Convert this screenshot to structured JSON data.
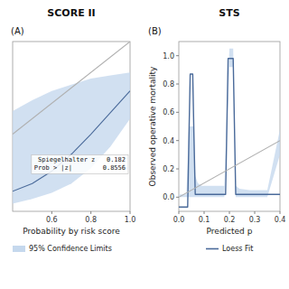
{
  "chart_data": [
    {
      "type": "line",
      "title": "SCORE II",
      "subtitle": "(A)",
      "xlabel": "Probability by risk score",
      "xlim": [
        0.4,
        1.0
      ],
      "ylim": [
        -0.1,
        1.0
      ],
      "xticks": [
        0.6,
        0.8,
        {
          "value": 1.0,
          "label": "1.0"
        }
      ],
      "tick_labels": "x",
      "legend": "bottom",
      "annotation": "Spiegelhalter z   0.182\nProb > |z|        0.8556",
      "series": [
        {
          "type": "area",
          "name": "95% Confidence Limits",
          "color": "#c5d8ed",
          "x": [
            0.4,
            0.5,
            0.6,
            0.7,
            0.8,
            0.9,
            1.0
          ],
          "lower": [
            -0.05,
            -0.02,
            0.02,
            0.08,
            0.18,
            0.32,
            0.5
          ],
          "upper": [
            0.55,
            0.62,
            0.68,
            0.72,
            0.76,
            0.78,
            0.8
          ]
        },
        {
          "type": "line",
          "color": "#4a6a9a",
          "x": [
            0.4,
            0.5,
            0.6,
            0.7,
            0.8,
            0.9,
            1.0
          ],
          "values": [
            0.03,
            0.08,
            0.16,
            0.27,
            0.4,
            0.54,
            0.68
          ]
        },
        {
          "type": "line",
          "color": "#b0b0b0",
          "x": [
            0.4,
            1.0
          ],
          "values": [
            0.4,
            1.0
          ]
        }
      ]
    },
    {
      "type": "line",
      "title": "STS",
      "subtitle": "(B)",
      "xlabel": "Predicted p",
      "ylabel": "Observed operative mortality",
      "xlim": [
        0.0,
        0.4
      ],
      "ylim": [
        -0.1,
        1.1
      ],
      "xticks": [
        {
          "value": 0.0,
          "label": "0.0"
        },
        0.1,
        0.2,
        0.3,
        0.4
      ],
      "yticks": [
        {
          "value": 0.0,
          "label": "0.0"
        },
        0.2,
        0.4,
        0.6,
        0.8,
        {
          "value": 1.0,
          "label": "1.0"
        }
      ],
      "legend": "bottom",
      "series": [
        {
          "type": "area",
          "color": "#c5d8ed",
          "x": [
            0.0,
            0.03,
            0.04,
            0.05,
            0.06,
            0.065,
            0.075,
            0.09,
            0.15,
            0.18,
            0.2,
            0.215,
            0.225,
            0.24,
            0.28,
            0.35,
            0.4
          ],
          "lower": [
            0.0,
            0.0,
            0.0,
            0.0,
            0.0,
            0.0,
            0.0,
            0.0,
            0.0,
            0.0,
            0.92,
            0.92,
            0.0,
            0.0,
            0.0,
            0.0,
            0.3
          ],
          "upper": [
            0.02,
            0.02,
            0.5,
            0.5,
            0.5,
            0.15,
            0.1,
            0.08,
            0.08,
            0.08,
            1.05,
            1.05,
            0.08,
            0.06,
            0.05,
            0.05,
            0.48
          ]
        },
        {
          "type": "line",
          "name": "Loess Fit",
          "color": "#4a6a9a",
          "x": [
            0.0,
            0.025,
            0.035,
            0.04,
            0.045,
            0.05,
            0.055,
            0.06,
            0.065,
            0.07,
            0.08,
            0.1,
            0.15,
            0.185,
            0.195,
            0.215,
            0.225,
            0.23,
            0.25,
            0.3,
            0.4
          ],
          "values": [
            -0.07,
            -0.07,
            -0.07,
            0.42,
            0.87,
            0.87,
            0.87,
            0.42,
            0.02,
            0.02,
            0.02,
            0.02,
            0.02,
            0.02,
            0.98,
            0.98,
            0.02,
            0.02,
            0.02,
            0.02,
            0.02
          ]
        },
        {
          "type": "line",
          "color": "#b0b0b0",
          "x": [
            0.0,
            0.4
          ],
          "values": [
            0.0,
            0.4
          ]
        }
      ]
    }
  ]
}
